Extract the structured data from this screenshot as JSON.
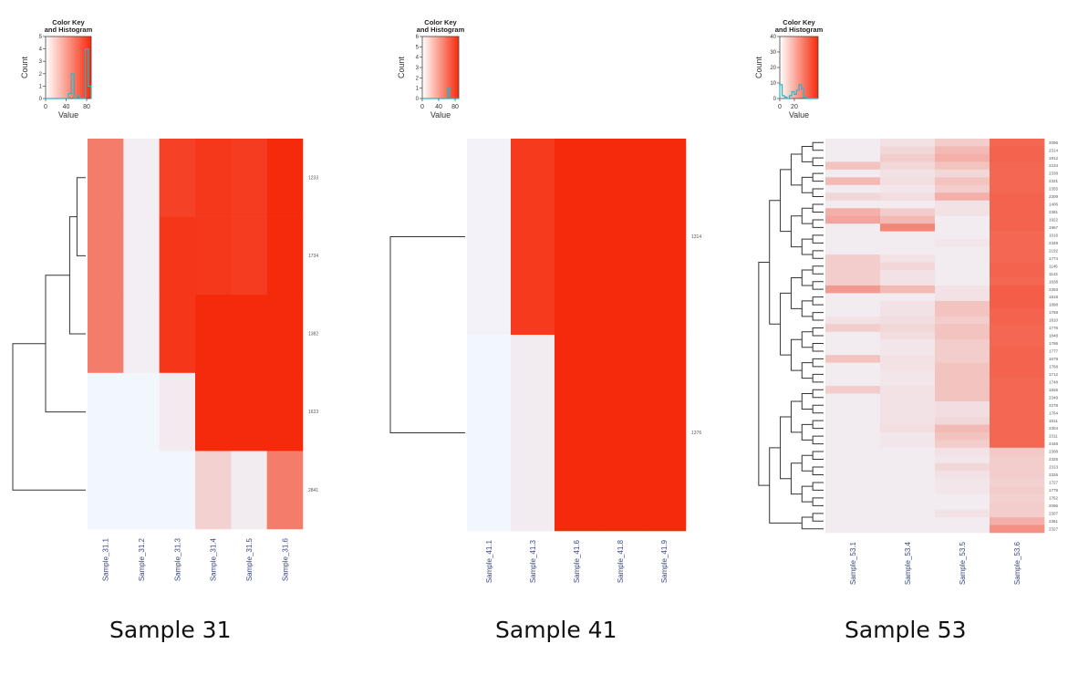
{
  "colors": {
    "low": "#f2f6fd",
    "high": "#f52a0a",
    "hist": "#29b6c6",
    "dendro": "#333333",
    "label": "#3a4a8a"
  },
  "chart_data": [
    {
      "type": "heatmap",
      "caption": "Sample 31",
      "key_title": [
        "Color Key",
        "and Histogram"
      ],
      "key_xlabel": "Value",
      "key_ylabel": "Count",
      "key_xticks": [
        "0",
        "40",
        "80"
      ],
      "key_yticks": [
        "0",
        "1",
        "2",
        "3",
        "4",
        "5"
      ],
      "hist_heights": [
        0,
        0,
        0,
        0,
        0,
        0,
        0,
        0,
        0.4,
        2,
        0,
        0.2,
        0,
        0,
        4,
        1
      ],
      "columns": [
        "Sample_31.1",
        "Sample_31.2",
        "Sample_31.3",
        "Sample_31.4",
        "Sample_31.5",
        "Sample_31.6"
      ],
      "rows": [
        "1233",
        "1734",
        "1382",
        "1623",
        "2841"
      ],
      "values": [
        [
          60,
          4,
          88,
          93,
          91,
          100
        ],
        [
          60,
          4,
          94,
          93,
          91,
          100
        ],
        [
          60,
          4,
          94,
          100,
          100,
          100
        ],
        [
          0,
          0,
          6,
          100,
          100,
          100
        ],
        [
          0,
          0,
          0,
          18,
          5,
          60
        ]
      ]
    },
    {
      "type": "heatmap",
      "caption": "Sample 41",
      "key_title": [
        "Color Key",
        "and Histogram"
      ],
      "key_xlabel": "Value",
      "key_ylabel": "Count",
      "key_xticks": [
        "0",
        "40",
        "80"
      ],
      "key_yticks": [
        "0",
        "1",
        "2",
        "3",
        "4",
        "5",
        "6"
      ],
      "hist_heights": [
        0,
        0,
        0,
        0,
        0,
        0,
        0,
        0,
        0,
        0,
        0,
        1,
        0,
        0,
        0,
        0
      ],
      "columns": [
        "Sample_41.1",
        "Sample_41.3",
        "Sample_41.6",
        "Sample_41.8",
        "Sample_41.9"
      ],
      "rows": [
        "1314",
        "1376"
      ],
      "values": [
        [
          2,
          92,
          100,
          100,
          100
        ],
        [
          0,
          5,
          100,
          100,
          100
        ]
      ]
    },
    {
      "type": "heatmap",
      "caption": "Sample 53",
      "key_title": [
        "Color Key",
        "and Histogram"
      ],
      "key_xlabel": "Value",
      "key_ylabel": "Count",
      "key_xticks": [
        "0",
        "20"
      ],
      "key_yticks": [
        "0",
        "10",
        "20",
        "30",
        "40"
      ],
      "hist_heights": [
        10,
        2,
        1,
        0,
        2,
        5,
        3,
        6,
        10,
        7,
        1,
        0,
        0,
        0,
        0,
        0
      ],
      "columns": [
        "Sample_53.1",
        "Sample_53.4",
        "Sample_53.5",
        "Sample_53.6"
      ],
      "rows": [
        "2096",
        "2314",
        "1912",
        "2234",
        "2338",
        "2321",
        "2355",
        "2309",
        "1406",
        "2381",
        "1922",
        "1967",
        "1016",
        "2349",
        "2192",
        "1774",
        "1146",
        "1143",
        "1838",
        "2293",
        "1818",
        "1898",
        "1758",
        "1810",
        "1776",
        "1848",
        "1766",
        "1777",
        "1679",
        "1768",
        "1712",
        "1748",
        "1826",
        "2349",
        "2278",
        "1764",
        "1811",
        "2304",
        "2311",
        "2448",
        "2308",
        "2325",
        "2313",
        "2326",
        "1727",
        "1779",
        "1762",
        "2096",
        "2307",
        "2361",
        "2327"
      ],
      "values": [
        [
          5,
          10,
          20,
          70
        ],
        [
          5,
          15,
          30,
          72
        ],
        [
          5,
          20,
          35,
          72
        ],
        [
          25,
          15,
          25,
          70
        ],
        [
          5,
          10,
          15,
          70
        ],
        [
          30,
          12,
          25,
          70
        ],
        [
          5,
          8,
          20,
          70
        ],
        [
          15,
          12,
          35,
          72
        ],
        [
          5,
          5,
          10,
          72
        ],
        [
          35,
          20,
          10,
          72
        ],
        [
          40,
          30,
          5,
          72
        ],
        [
          5,
          55,
          5,
          72
        ],
        [
          5,
          5,
          5,
          70
        ],
        [
          5,
          5,
          8,
          70
        ],
        [
          5,
          5,
          5,
          70
        ],
        [
          20,
          10,
          5,
          70
        ],
        [
          20,
          15,
          5,
          72
        ],
        [
          20,
          10,
          5,
          72
        ],
        [
          20,
          10,
          5,
          70
        ],
        [
          45,
          30,
          10,
          75
        ],
        [
          5,
          5,
          10,
          75
        ],
        [
          5,
          10,
          25,
          75
        ],
        [
          5,
          10,
          25,
          72
        ],
        [
          10,
          12,
          20,
          72
        ],
        [
          20,
          15,
          25,
          70
        ],
        [
          5,
          12,
          25,
          70
        ],
        [
          5,
          8,
          20,
          70
        ],
        [
          5,
          8,
          20,
          72
        ],
        [
          25,
          10,
          20,
          72
        ],
        [
          5,
          10,
          25,
          72
        ],
        [
          5,
          8,
          25,
          72
        ],
        [
          5,
          8,
          25,
          70
        ],
        [
          20,
          10,
          25,
          70
        ],
        [
          5,
          10,
          25,
          70
        ],
        [
          5,
          10,
          12,
          70
        ],
        [
          5,
          10,
          12,
          70
        ],
        [
          5,
          10,
          15,
          70
        ],
        [
          5,
          12,
          30,
          70
        ],
        [
          5,
          8,
          25,
          70
        ],
        [
          5,
          8,
          20,
          70
        ],
        [
          5,
          5,
          10,
          22
        ],
        [
          5,
          5,
          8,
          20
        ],
        [
          5,
          5,
          15,
          20
        ],
        [
          5,
          5,
          10,
          20
        ],
        [
          5,
          5,
          8,
          18
        ],
        [
          5,
          5,
          8,
          20
        ],
        [
          5,
          5,
          5,
          18
        ],
        [
          5,
          5,
          5,
          20
        ],
        [
          5,
          5,
          10,
          20
        ],
        [
          5,
          5,
          5,
          35
        ],
        [
          5,
          5,
          5,
          50
        ]
      ]
    }
  ]
}
